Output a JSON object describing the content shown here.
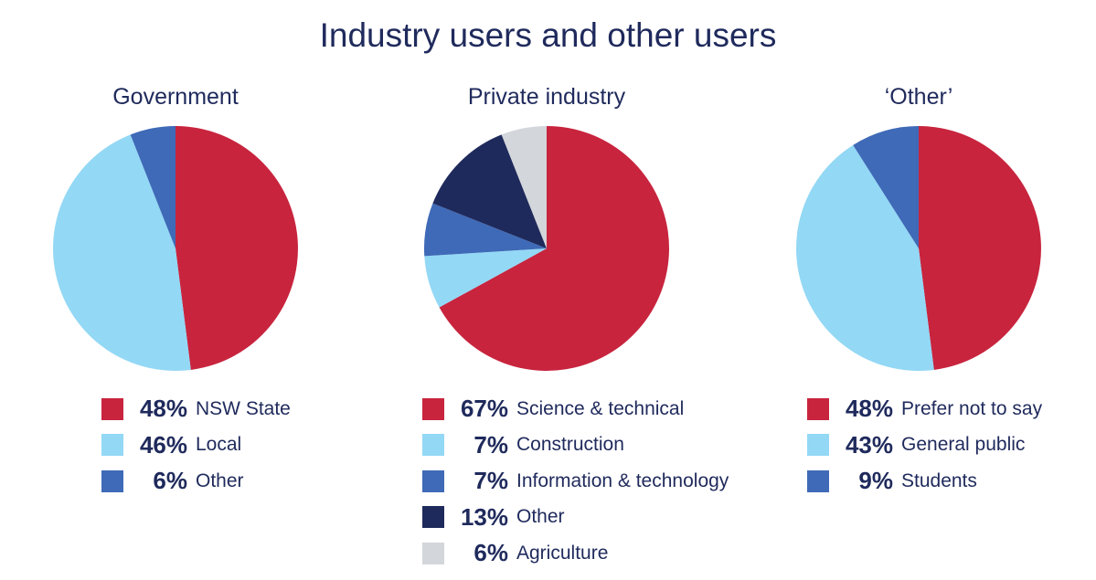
{
  "title": "Industry users and other users",
  "chart_data": [
    {
      "type": "pie",
      "title": "Government",
      "slices": [
        {
          "label": "NSW State",
          "value": 48,
          "pct_label": "48%",
          "color": "#c8243e"
        },
        {
          "label": "Local",
          "value": 46,
          "pct_label": "46%",
          "color": "#93d8f5"
        },
        {
          "label": "Other",
          "value": 6,
          "pct_label": "6%",
          "color": "#3f6ab7"
        }
      ]
    },
    {
      "type": "pie",
      "title": "Private industry",
      "slices": [
        {
          "label": "Science & technical",
          "value": 67,
          "pct_label": "67%",
          "color": "#c8243e"
        },
        {
          "label": "Construction",
          "value": 7,
          "pct_label": "7%",
          "color": "#93d8f5"
        },
        {
          "label": "Information & technology",
          "value": 7,
          "pct_label": "7%",
          "color": "#3f6ab7"
        },
        {
          "label": "Other",
          "value": 13,
          "pct_label": "13%",
          "color": "#1f2a5c"
        },
        {
          "label": "Agriculture",
          "value": 6,
          "pct_label": "6%",
          "color": "#d3d6da"
        }
      ]
    },
    {
      "type": "pie",
      "title": "‘Other’",
      "slices": [
        {
          "label": "Prefer not to say",
          "value": 48,
          "pct_label": "48%",
          "color": "#c8243e"
        },
        {
          "label": "General public",
          "value": 43,
          "pct_label": "43%",
          "color": "#93d8f5"
        },
        {
          "label": "Students",
          "value": 9,
          "pct_label": "9%",
          "color": "#3f6ab7"
        }
      ]
    }
  ]
}
